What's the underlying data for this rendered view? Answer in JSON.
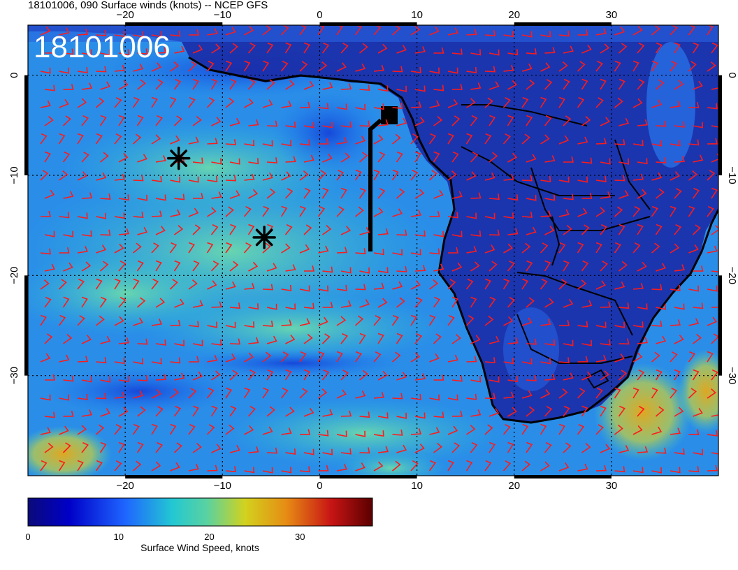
{
  "header": {
    "title": "18101006, 090 Surface winds (knots) -- NCEP GFS",
    "stamp": "18101006"
  },
  "map": {
    "lon_range": [
      -30,
      41
    ],
    "lat_range": [
      -40,
      5
    ],
    "lon_ticks": [
      "-20",
      "-10",
      "0",
      "10",
      "20",
      "30"
    ],
    "lat_ticks": [
      "0",
      "-10",
      "-20",
      "-30"
    ],
    "barb_color": "#ff1a1a",
    "coast_color": "#000000"
  },
  "colorbar": {
    "ticks": [
      "0",
      "10",
      "20",
      "30"
    ],
    "label": "Surface Wind Speed, knots",
    "range": [
      0,
      38
    ],
    "colors": [
      "#0a0a7a",
      "#0000c8",
      "#1e64ff",
      "#23c8d2",
      "#5ad2a0",
      "#d2d21e",
      "#e68c14",
      "#c81414",
      "#5a0000"
    ]
  },
  "markers": [
    {
      "name": "asterisk",
      "lon": -14.5,
      "lat": -8.3
    },
    {
      "name": "asterisk",
      "lon": -5.7,
      "lat": -16.2
    }
  ]
}
